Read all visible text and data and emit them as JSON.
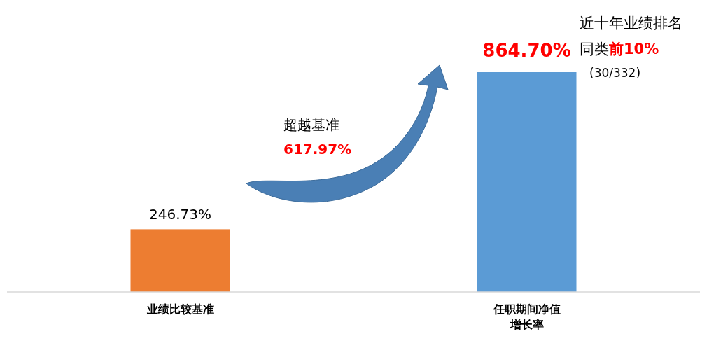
{
  "chart_data": {
    "type": "bar",
    "categories": [
      "业绩比较基准",
      "任职期间净值增长率"
    ],
    "values": [
      246.73,
      864.7
    ],
    "colors": [
      "#ed7d31",
      "#5b9bd5"
    ],
    "value_labels": [
      "246.73%",
      "864.70%"
    ],
    "annotations": [
      "超越基准",
      "617.97%",
      "近十年业绩排名",
      "同类",
      "前10%",
      "(30/332)"
    ]
  }
}
